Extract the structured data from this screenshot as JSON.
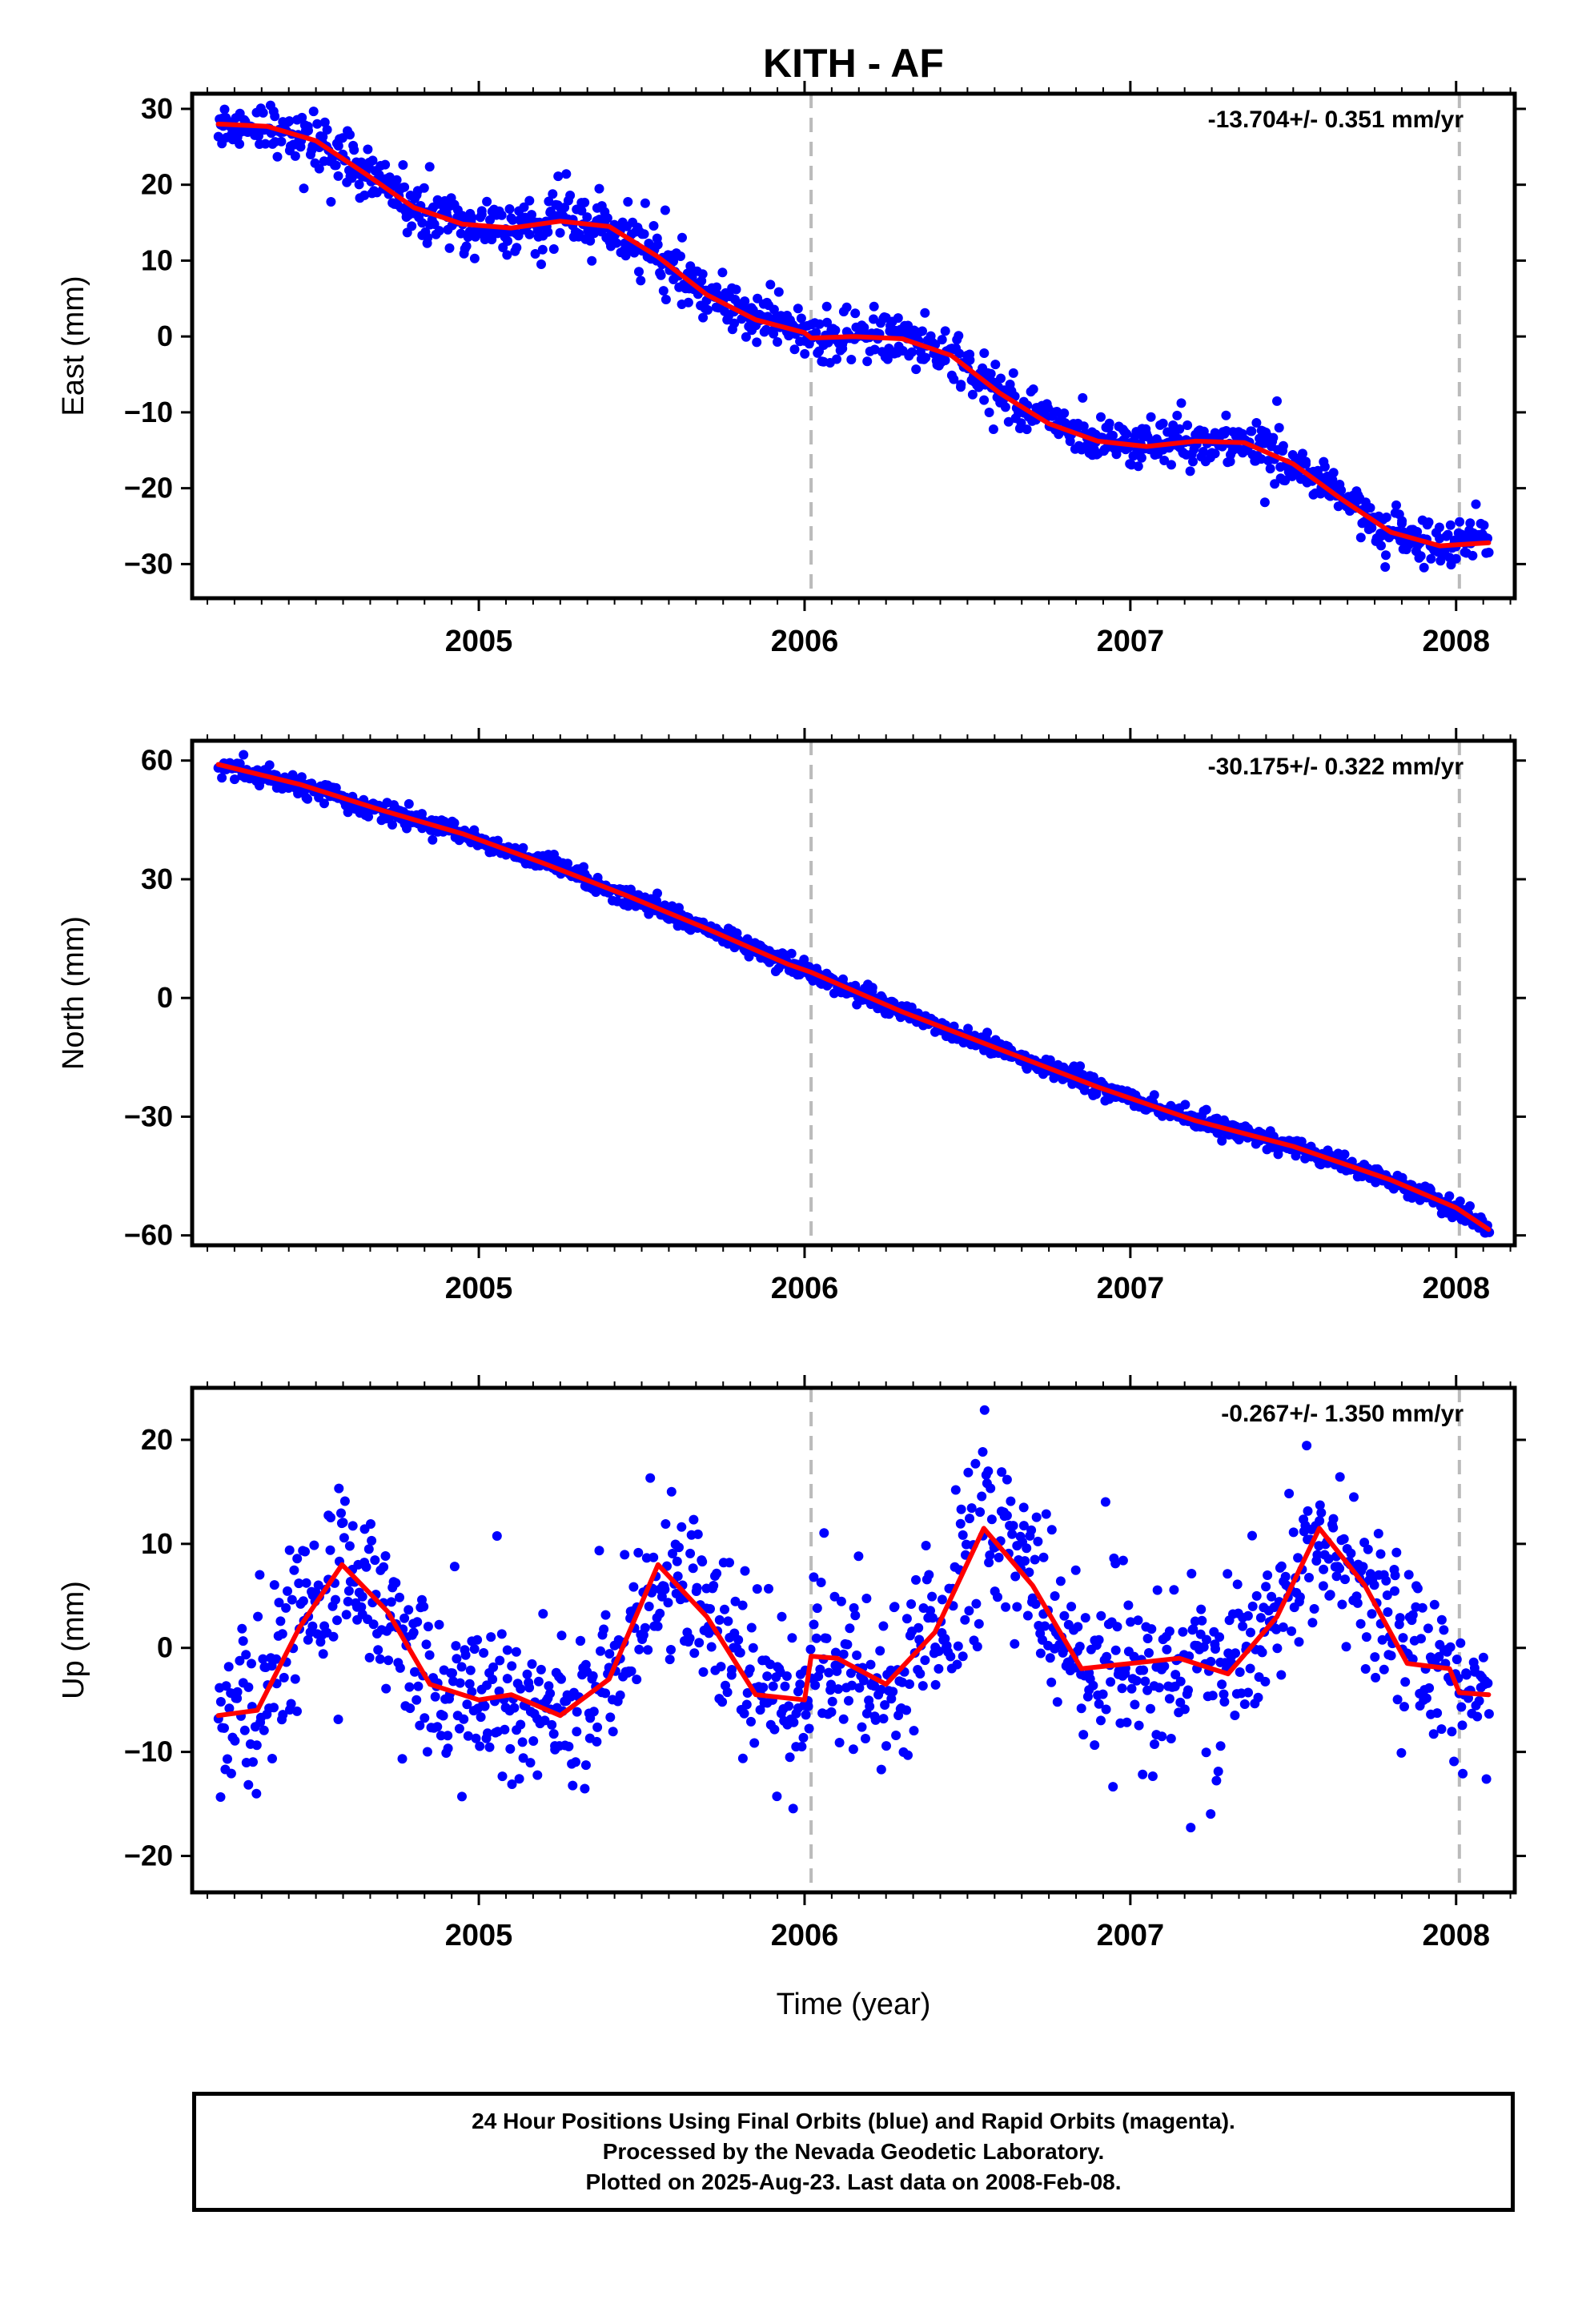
{
  "title": "KITH - AF",
  "xlabel": "Time (year)",
  "footer": {
    "line1": "24 Hour Positions Using Final Orbits (blue) and Rapid Orbits (magenta).",
    "line2": "Processed by the Nevada Geodetic Laboratory.",
    "line3": "Plotted on 2025-Aug-23. Last data on 2008-Feb-08."
  },
  "colors": {
    "points": "#0000ff",
    "fit": "#ff0000",
    "frame": "#000000",
    "dashed": "#bbbbbb"
  },
  "chart_data": [
    {
      "type": "scatter",
      "panel": "east",
      "ylabel": "East (mm)",
      "rate_label": "-13.704+/- 0.351 mm/yr",
      "xlim": [
        2004.12,
        2008.18
      ],
      "ylim": [
        -34.5,
        32.0
      ],
      "yticks": [
        30,
        20,
        10,
        0,
        -10,
        -20,
        -30
      ],
      "ytick_labels": [
        "30",
        "20",
        "10",
        "0",
        "−10",
        "−20",
        "−30"
      ],
      "xticks": [
        2005,
        2006,
        2007,
        2008
      ],
      "xtick_labels": [
        "2005",
        "2006",
        "2007",
        "2008"
      ],
      "equipment_changes": [
        2006.02,
        2008.01
      ],
      "data_span": [
        2004.2,
        2008.1
      ],
      "fit_x": [
        2004.2,
        2004.35,
        2004.5,
        2004.65,
        2004.8,
        2004.95,
        2005.1,
        2005.25,
        2005.4,
        2005.55,
        2005.7,
        2005.85,
        2006.0,
        2006.02,
        2006.15,
        2006.3,
        2006.45,
        2006.6,
        2006.75,
        2006.9,
        2007.05,
        2007.2,
        2007.35,
        2007.5,
        2007.65,
        2007.8,
        2007.95,
        2008.1
      ],
      "fit_y": [
        28.0,
        27.7,
        25.8,
        21.5,
        17.0,
        14.8,
        14.3,
        15.2,
        14.5,
        10.5,
        5.5,
        2.2,
        0.5,
        -0.2,
        0.0,
        -0.3,
        -2.5,
        -7.5,
        -11.5,
        -13.8,
        -14.5,
        -13.8,
        -14.0,
        -16.8,
        -21.5,
        -25.8,
        -27.6,
        -27.2
      ],
      "noise": 1.6,
      "outlier_rate": 0.04,
      "outlier_scale": 6
    },
    {
      "type": "scatter",
      "panel": "north",
      "ylabel": "North (mm)",
      "rate_label": "-30.175+/- 0.322 mm/yr",
      "xlim": [
        2004.12,
        2008.18
      ],
      "ylim": [
        -62.5,
        65.0
      ],
      "yticks": [
        60,
        30,
        0,
        -30,
        -60
      ],
      "ytick_labels": [
        "60",
        "30",
        "0",
        "−30",
        "−60"
      ],
      "xticks": [
        2005,
        2006,
        2007,
        2008
      ],
      "xtick_labels": [
        "2005",
        "2006",
        "2007",
        "2008"
      ],
      "equipment_changes": [
        2006.02,
        2008.01
      ],
      "data_span": [
        2004.2,
        2008.1
      ],
      "fit_x": [
        2004.2,
        2004.45,
        2004.7,
        2004.95,
        2005.2,
        2005.45,
        2005.7,
        2005.95,
        2006.02,
        2006.3,
        2006.6,
        2006.9,
        2007.2,
        2007.5,
        2007.8,
        2008.0,
        2008.1
      ],
      "fit_y": [
        59.0,
        54.0,
        47.5,
        41.5,
        34.0,
        26.0,
        17.5,
        8.5,
        6.5,
        -3.5,
        -13.0,
        -22.5,
        -31.0,
        -37.5,
        -46.0,
        -53.0,
        -58.5
      ],
      "noise": 1.2,
      "outlier_rate": 0.01,
      "outlier_scale": 3
    },
    {
      "type": "scatter",
      "panel": "up",
      "ylabel": "Up (mm)",
      "rate_label": "-0.267+/- 1.350 mm/yr",
      "xlim": [
        2004.12,
        2008.18
      ],
      "ylim": [
        -23.5,
        25.0
      ],
      "yticks": [
        20,
        10,
        0,
        -10,
        -20
      ],
      "ytick_labels": [
        "20",
        "10",
        "0",
        "−10",
        "−20"
      ],
      "xticks": [
        2005,
        2006,
        2007,
        2008
      ],
      "xtick_labels": [
        "2005",
        "2006",
        "2007",
        "2008"
      ],
      "equipment_changes": [
        2006.02,
        2008.01
      ],
      "data_span": [
        2004.2,
        2008.1
      ],
      "fit_x": [
        2004.2,
        2004.32,
        2004.45,
        2004.58,
        2004.72,
        2004.85,
        2005.0,
        2005.1,
        2005.25,
        2005.4,
        2005.55,
        2005.7,
        2005.85,
        2006.0,
        2006.02,
        2006.1,
        2006.25,
        2006.4,
        2006.55,
        2006.7,
        2006.85,
        2007.0,
        2007.15,
        2007.3,
        2007.45,
        2007.58,
        2007.72,
        2007.85,
        2007.98,
        2008.01,
        2008.1
      ],
      "fit_y": [
        -6.5,
        -6.0,
        2.0,
        8.0,
        3.5,
        -3.5,
        -5.0,
        -4.5,
        -6.5,
        -3.0,
        8.0,
        3.0,
        -4.5,
        -5.0,
        -0.8,
        -1.0,
        -3.5,
        1.5,
        11.5,
        6.0,
        -2.0,
        -1.5,
        -1.0,
        -2.5,
        3.0,
        11.5,
        6.0,
        -1.5,
        -2.0,
        -4.3,
        -4.5
      ],
      "noise": 3.8,
      "outlier_rate": 0.05,
      "outlier_scale": 10
    }
  ]
}
